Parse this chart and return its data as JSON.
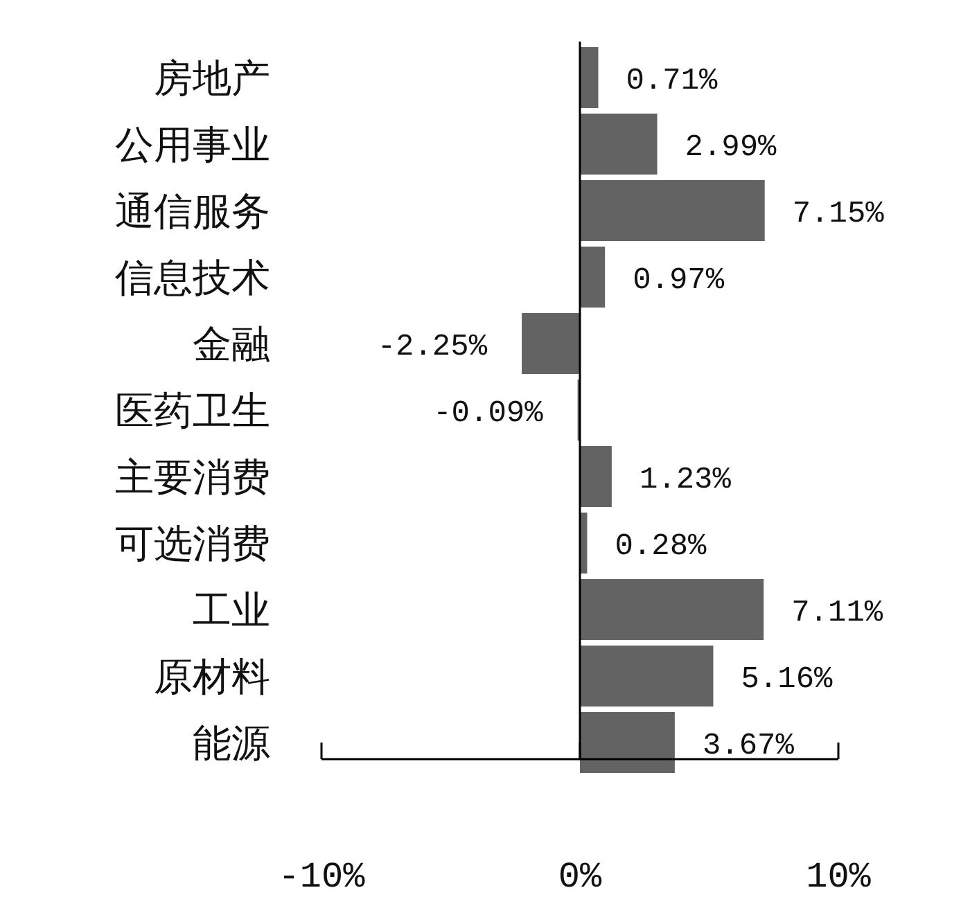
{
  "chart_data": {
    "type": "bar",
    "orientation": "horizontal",
    "categories": [
      "房地产",
      "公用事业",
      "通信服务",
      "信息技术",
      "金融",
      "医药卫生",
      "主要消费",
      "可选消费",
      "工业",
      "原材料",
      "能源"
    ],
    "series": [
      {
        "color": "#636363",
        "values": [
          0.71,
          2.99,
          7.15,
          0.97,
          -2.25,
          -0.09,
          1.23,
          0.28,
          7.11,
          5.16,
          3.67
        ],
        "value_labels": [
          "0.71%",
          "2.99%",
          "7.15%",
          "0.97%",
          "-2.25%",
          "-0.09%",
          "1.23%",
          "0.28%",
          "7.11%",
          "5.16%",
          "3.67%"
        ]
      }
    ],
    "xlim": [
      -10,
      10
    ],
    "xticks": [
      {
        "value": -10,
        "label": "-10%"
      },
      {
        "value": 0,
        "label": "0%"
      },
      {
        "value": 10,
        "label": "10%"
      }
    ]
  }
}
